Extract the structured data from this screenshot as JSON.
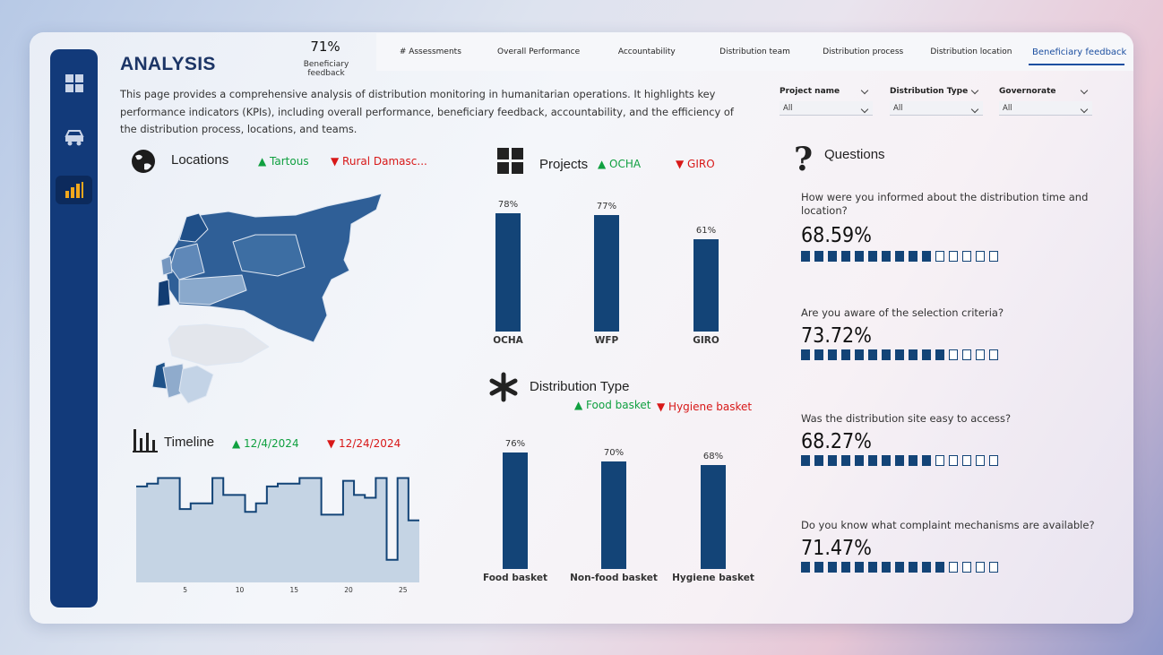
{
  "header": {
    "title": "ANALYSIS",
    "kpi_value": "71%",
    "kpi_label": "Beneficiary feedback"
  },
  "tabs": [
    "# Assessments",
    "Overall Performance",
    "Accountability",
    "Distribution team",
    "Distribution process",
    "Distribution location",
    "Beneficiary feedback"
  ],
  "active_tab": "Beneficiary feedback",
  "description": "This page provides a comprehensive analysis of distribution monitoring in humanitarian operations. It highlights key performance indicators (KPIs), including overall performance, beneficiary feedback, accountability, and the efficiency of the distribution process, locations, and teams.",
  "filters": [
    {
      "label": "Project name",
      "value": "All"
    },
    {
      "label": "Distribution Type",
      "value": "All"
    },
    {
      "label": "Governorate",
      "value": "All"
    }
  ],
  "locations": {
    "title": "Locations",
    "top": "Tartous",
    "bottom": "Rural Damasc..."
  },
  "timeline": {
    "title": "Timeline",
    "top": "12/4/2024",
    "bottom": "12/24/2024"
  },
  "projects": {
    "title": "Projects",
    "top": "OCHA",
    "bottom": "GIRO"
  },
  "distribution_type": {
    "title": "Distribution Type",
    "top": "Food basket",
    "bottom": "Hygiene basket"
  },
  "questions": {
    "title": "Questions",
    "items": [
      {
        "text": "How were you informed about the distribution time and location?",
        "value": "68.59%",
        "filled": 10,
        "total": 15
      },
      {
        "text": "Are you aware of the selection criteria?",
        "value": "73.72%",
        "filled": 11,
        "total": 15
      },
      {
        "text": "Was the distribution site easy to access?",
        "value": "68.27%",
        "filled": 10,
        "total": 15
      },
      {
        "text": "Do you know what complaint mechanisms are available?",
        "value": "71.47%",
        "filled": 11,
        "total": 15
      }
    ]
  },
  "colors": {
    "primary": "#134477",
    "sidebar": "#123a7a",
    "up": "#10a040",
    "down": "#d81818"
  },
  "chart_data": [
    {
      "type": "bar",
      "title": "Projects",
      "categories": [
        "OCHA",
        "WFP",
        "GIRO"
      ],
      "values": [
        78,
        77,
        61
      ],
      "labels": [
        "78%",
        "77%",
        "61%"
      ],
      "ylim": [
        0,
        100
      ]
    },
    {
      "type": "bar",
      "title": "Distribution Type",
      "categories": [
        "Food basket",
        "Non-food basket",
        "Hygiene basket"
      ],
      "values": [
        76,
        70,
        68
      ],
      "labels": [
        "76%",
        "70%",
        "68%"
      ],
      "ylim": [
        0,
        100
      ]
    },
    {
      "type": "area",
      "title": "Timeline",
      "x_ticks": [
        "5",
        "10",
        "15",
        "20",
        "25"
      ],
      "x": [
        1,
        2,
        3,
        4,
        5,
        6,
        7,
        8,
        9,
        10,
        11,
        12,
        13,
        14,
        15,
        16,
        17,
        18,
        19,
        20,
        21,
        22,
        23,
        24,
        25,
        26
      ],
      "values": [
        68,
        70,
        74,
        74,
        52,
        56,
        56,
        74,
        62,
        62,
        50,
        56,
        68,
        70,
        70,
        74,
        74,
        48,
        48,
        72,
        62,
        60,
        74,
        16,
        74,
        44
      ],
      "ylim": [
        0,
        80
      ]
    }
  ]
}
